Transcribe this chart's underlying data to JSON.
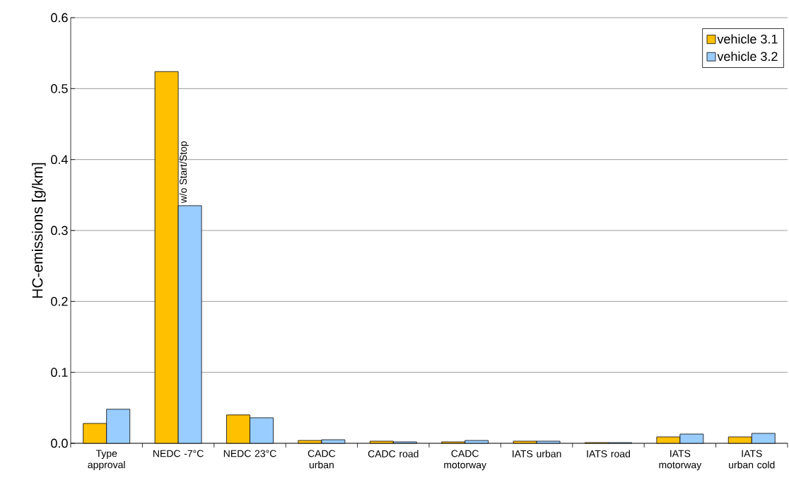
{
  "chart_data": {
    "type": "bar",
    "ylabel": "HC-emissions [g/km]",
    "categories": [
      "Type approval",
      "NEDC -7°C",
      "NEDC 23°C",
      "CADC urban",
      "CADC road",
      "CADC motorway",
      "IATS urban",
      "IATS road",
      "IATS motorway",
      "IATS urban cold"
    ],
    "series": [
      {
        "name": "vehicle 3.1",
        "color": "#ffc000",
        "values": [
          0.028,
          0.524,
          0.04,
          0.004,
          0.003,
          0.002,
          0.003,
          0.001,
          0.009,
          0.009
        ]
      },
      {
        "name": "vehicle 3.2",
        "color": "#99ccff",
        "values": [
          0.048,
          0.335,
          0.036,
          0.005,
          0.002,
          0.004,
          0.003,
          0.001,
          0.013,
          0.014
        ]
      }
    ],
    "ylim": [
      0,
      0.6
    ],
    "yticks": [
      {
        "value": 0,
        "label": "0.0"
      },
      {
        "value": 0.1,
        "label": "0.1"
      },
      {
        "value": 0.2,
        "label": "0.2"
      },
      {
        "value": 0.3,
        "label": "0.3"
      },
      {
        "value": 0.4,
        "label": "0.4"
      },
      {
        "value": 0.5,
        "label": "0.5"
      },
      {
        "value": 0.6,
        "label": "0.6"
      }
    ],
    "grid": "y",
    "legend": "top right",
    "annotations": [
      {
        "text": "w/o Start/Stop",
        "x": "NEDC -7°C",
        "y": 0.335
      }
    ]
  }
}
